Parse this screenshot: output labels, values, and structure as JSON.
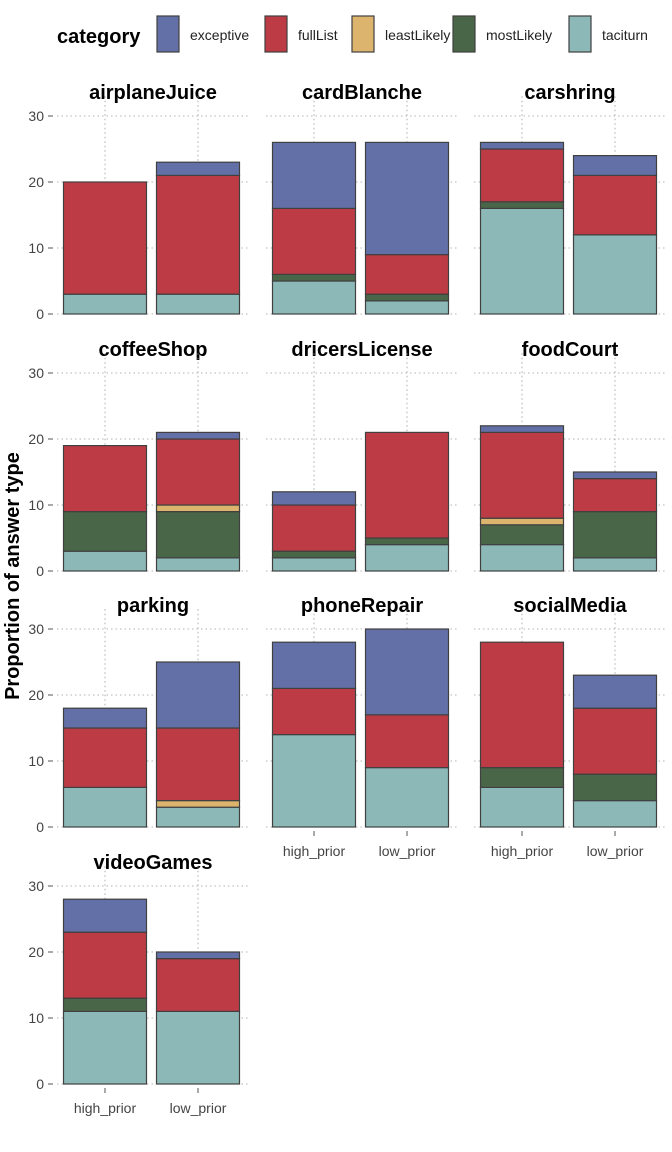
{
  "chart_data": {
    "type": "bar",
    "stacked": true,
    "ylabel": "Proportion of answer type",
    "xlabel": "",
    "ylim": [
      0,
      30
    ],
    "yticks": [
      0,
      10,
      20,
      30
    ],
    "grid": true,
    "legend": {
      "title": "category",
      "position": "top",
      "entries": [
        {
          "name": "exceptive",
          "color": "#6370A8"
        },
        {
          "name": "fullList",
          "color": "#BC3B45"
        },
        {
          "name": "leastLikely",
          "color": "#DCB46E"
        },
        {
          "name": "mostLikely",
          "color": "#4A6648"
        },
        {
          "name": "taciturn",
          "color": "#8CB8B7"
        }
      ]
    },
    "categories": [
      "high_prior",
      "low_prior"
    ],
    "stack_order": [
      "taciturn",
      "mostLikely",
      "leastLikely",
      "fullList",
      "exceptive"
    ],
    "panels": [
      {
        "title": "airplaneJuice",
        "bars": {
          "high_prior": {
            "taciturn": 3,
            "mostLikely": 0,
            "leastLikely": 0,
            "fullList": 17,
            "exceptive": 0
          },
          "low_prior": {
            "taciturn": 3,
            "mostLikely": 0,
            "leastLikely": 0,
            "fullList": 18,
            "exceptive": 2
          }
        }
      },
      {
        "title": "cardBlanche",
        "bars": {
          "high_prior": {
            "taciturn": 5,
            "mostLikely": 1,
            "leastLikely": 0,
            "fullList": 10,
            "exceptive": 10
          },
          "low_prior": {
            "taciturn": 2,
            "mostLikely": 1,
            "leastLikely": 0,
            "fullList": 6,
            "exceptive": 17
          }
        }
      },
      {
        "title": "carshring",
        "bars": {
          "high_prior": {
            "taciturn": 16,
            "mostLikely": 1,
            "leastLikely": 0,
            "fullList": 8,
            "exceptive": 1
          },
          "low_prior": {
            "taciturn": 12,
            "mostLikely": 0,
            "leastLikely": 0,
            "fullList": 9,
            "exceptive": 3
          }
        }
      },
      {
        "title": "coffeeShop",
        "bars": {
          "high_prior": {
            "taciturn": 3,
            "mostLikely": 6,
            "leastLikely": 0,
            "fullList": 10,
            "exceptive": 0
          },
          "low_prior": {
            "taciturn": 2,
            "mostLikely": 7,
            "leastLikely": 1,
            "fullList": 10,
            "exceptive": 1
          }
        }
      },
      {
        "title": "dricersLicense",
        "bars": {
          "high_prior": {
            "taciturn": 2,
            "mostLikely": 1,
            "leastLikely": 0,
            "fullList": 7,
            "exceptive": 2
          },
          "low_prior": {
            "taciturn": 4,
            "mostLikely": 1,
            "leastLikely": 0,
            "fullList": 16,
            "exceptive": 0
          }
        }
      },
      {
        "title": "foodCourt",
        "bars": {
          "high_prior": {
            "taciturn": 4,
            "mostLikely": 3,
            "leastLikely": 1,
            "fullList": 13,
            "exceptive": 1
          },
          "low_prior": {
            "taciturn": 2,
            "mostLikely": 7,
            "leastLikely": 0,
            "fullList": 5,
            "exceptive": 1
          }
        }
      },
      {
        "title": "parking",
        "bars": {
          "high_prior": {
            "taciturn": 6,
            "mostLikely": 0,
            "leastLikely": 0,
            "fullList": 9,
            "exceptive": 3
          },
          "low_prior": {
            "taciturn": 3,
            "mostLikely": 0,
            "leastLikely": 1,
            "fullList": 11,
            "exceptive": 10
          }
        }
      },
      {
        "title": "phoneRepair",
        "bars": {
          "high_prior": {
            "taciturn": 14,
            "mostLikely": 0,
            "leastLikely": 0,
            "fullList": 7,
            "exceptive": 7
          },
          "low_prior": {
            "taciturn": 9,
            "mostLikely": 0,
            "leastLikely": 0,
            "fullList": 8,
            "exceptive": 13
          }
        }
      },
      {
        "title": "socialMedia",
        "bars": {
          "high_prior": {
            "taciturn": 6,
            "mostLikely": 3,
            "leastLikely": 0,
            "fullList": 19,
            "exceptive": 0
          },
          "low_prior": {
            "taciturn": 4,
            "mostLikely": 4,
            "leastLikely": 0,
            "fullList": 10,
            "exceptive": 5
          }
        }
      },
      {
        "title": "videoGames",
        "bars": {
          "high_prior": {
            "taciturn": 11,
            "mostLikely": 2,
            "leastLikely": 0,
            "fullList": 10,
            "exceptive": 5
          },
          "low_prior": {
            "taciturn": 11,
            "mostLikely": 0,
            "leastLikely": 0,
            "fullList": 8,
            "exceptive": 1
          }
        }
      }
    ]
  }
}
